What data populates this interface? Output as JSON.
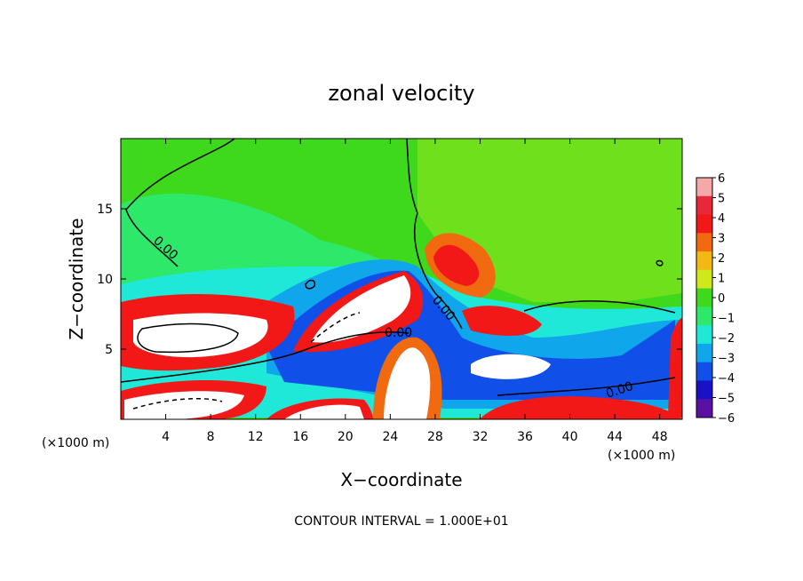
{
  "chart_data": {
    "type": "heatmap",
    "title": "zonal velocity",
    "xlabel": "X−coordinate",
    "ylabel": "Z−coordinate",
    "x_unit_left": "(×1000 m)",
    "x_unit_right": "(×1000 m)",
    "xlim": [
      0,
      50
    ],
    "ylim": [
      0,
      20
    ],
    "x_ticks": [
      "4",
      "8",
      "12",
      "16",
      "20",
      "24",
      "28",
      "32",
      "36",
      "40",
      "44",
      "48"
    ],
    "y_ticks": [
      "5",
      "10",
      "15"
    ],
    "colorbar": {
      "ticks": [
        "6",
        "5",
        "4",
        "3",
        "2",
        "1",
        "0",
        "−1",
        "−2",
        "−3",
        "−4",
        "−5",
        "−6"
      ],
      "range": [
        -6,
        6
      ],
      "colors": [
        "#f4a8a8",
        "#e8283a",
        "#f21818",
        "#f26a10",
        "#f2b814",
        "#cfe81a",
        "#3ed81c",
        "#2ee86a",
        "#20e8d8",
        "#10a6ec",
        "#1050e8",
        "#1a10c8",
        "#5a10a0"
      ]
    },
    "contour_labels": [
      "0.00",
      "0.00",
      "0.00",
      "0.00"
    ],
    "footer": "CONTOUR INTERVAL = 1.000E+01"
  }
}
